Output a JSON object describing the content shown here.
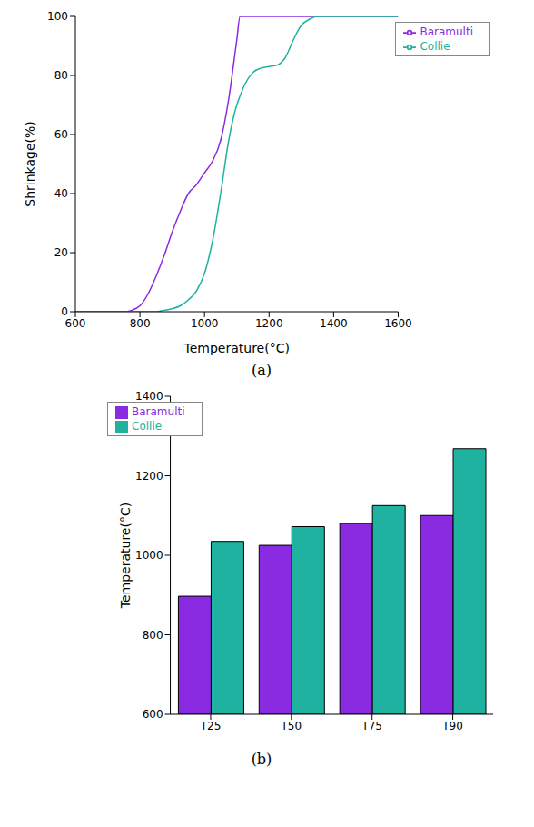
{
  "chart_data": [
    {
      "type": "line",
      "title": "(a)",
      "x_label": "Temperature(°C)",
      "y_label": "Shrinkage(%)",
      "x": [
        600,
        700,
        750,
        775,
        800,
        825,
        850,
        875,
        900,
        925,
        950,
        975,
        1000,
        1025,
        1050,
        1075,
        1100,
        1110,
        1125,
        1150,
        1175,
        1200,
        1225,
        1250,
        1275,
        1300,
        1325,
        1350,
        1375,
        1400,
        1500,
        1600
      ],
      "series": [
        {
          "name": "Baramulti",
          "color": "#8a2be2",
          "values": [
            0,
            0,
            0,
            0.5,
            2,
            6,
            12,
            19,
            27,
            34,
            40,
            43,
            47,
            51,
            58,
            72,
            92,
            100,
            100,
            100,
            100,
            100,
            100,
            100,
            100,
            100,
            100,
            100,
            100,
            100,
            100,
            100
          ]
        },
        {
          "name": "Collie",
          "color": "#20b2a0",
          "values": [
            0,
            0,
            0,
            0,
            0,
            0,
            0,
            0.5,
            1,
            2,
            4,
            7,
            13,
            24,
            40,
            58,
            70,
            73,
            77,
            81,
            82.5,
            83,
            83.5,
            86,
            92,
            97,
            99,
            100,
            100,
            100,
            100,
            100
          ]
        }
      ],
      "xlim": [
        600,
        1600
      ],
      "xticks": [
        600,
        800,
        1000,
        1200,
        1400,
        1600
      ],
      "ylim": [
        0,
        100
      ],
      "yticks": [
        0,
        20,
        40,
        60,
        80,
        100
      ],
      "legend": "upper right"
    },
    {
      "type": "bar",
      "title": "(b)",
      "y_label": "Temperature(°C)",
      "categories": [
        "T25",
        "T50",
        "T75",
        "T90"
      ],
      "series": [
        {
          "name": "Baramulti",
          "color": "#8a2be2",
          "values": [
            897,
            1025,
            1080,
            1100
          ]
        },
        {
          "name": "Collie",
          "color": "#20b2a0",
          "values": [
            1035,
            1072,
            1125,
            1268
          ]
        }
      ],
      "ylim": [
        600,
        1400
      ],
      "yticks": [
        600,
        800,
        1000,
        1200,
        1400
      ],
      "legend": "upper left"
    }
  ]
}
